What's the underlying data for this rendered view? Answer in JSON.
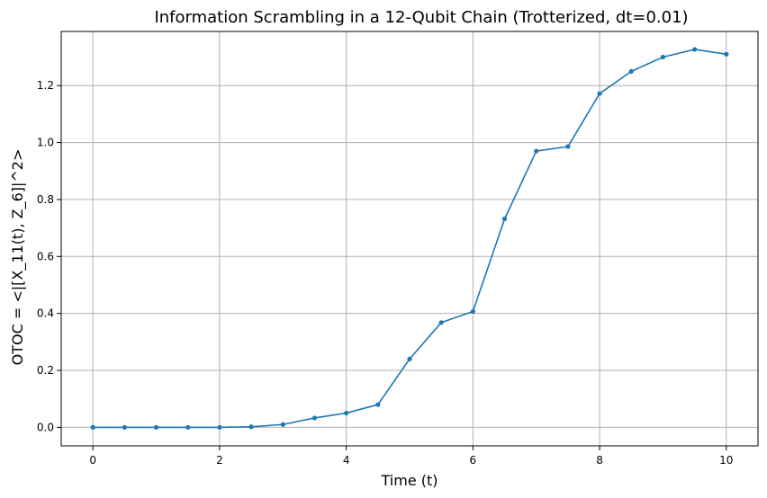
{
  "chart_data": {
    "type": "line",
    "title": "Information Scrambling in a 12-Qubit Chain (Trotterized, dt=0.01)",
    "xlabel": "Time (t)",
    "ylabel": "OTOC = <|[X_11(t), Z_6]|^2>",
    "xlim": [
      -0.5,
      10.5
    ],
    "ylim": [
      -0.065,
      1.39
    ],
    "xticks": [
      0,
      2,
      4,
      6,
      8,
      10
    ],
    "xtick_labels": [
      "0",
      "2",
      "4",
      "6",
      "8",
      "10"
    ],
    "yticks": [
      0.0,
      0.2,
      0.4,
      0.6,
      0.8,
      1.0,
      1.2
    ],
    "ytick_labels": [
      "0.0",
      "0.2",
      "0.4",
      "0.6",
      "0.8",
      "1.0",
      "1.2"
    ],
    "grid": true,
    "series": [
      {
        "color": "#1f77b4",
        "marker": "circle",
        "x": [
          0,
          0.5,
          1.0,
          1.5,
          2.0,
          2.5,
          3.0,
          3.5,
          4.0,
          4.5,
          5.0,
          5.5,
          6.0,
          6.5,
          7.0,
          7.5,
          8.0,
          8.5,
          9.0,
          9.5,
          10.0
        ],
        "y": [
          0.0,
          0.0,
          0.0,
          0.0,
          0.0,
          0.002,
          0.01,
          0.033,
          0.05,
          0.08,
          0.24,
          0.368,
          0.407,
          0.732,
          0.97,
          0.986,
          1.172,
          1.25,
          1.3,
          1.327,
          1.31
        ]
      }
    ]
  }
}
